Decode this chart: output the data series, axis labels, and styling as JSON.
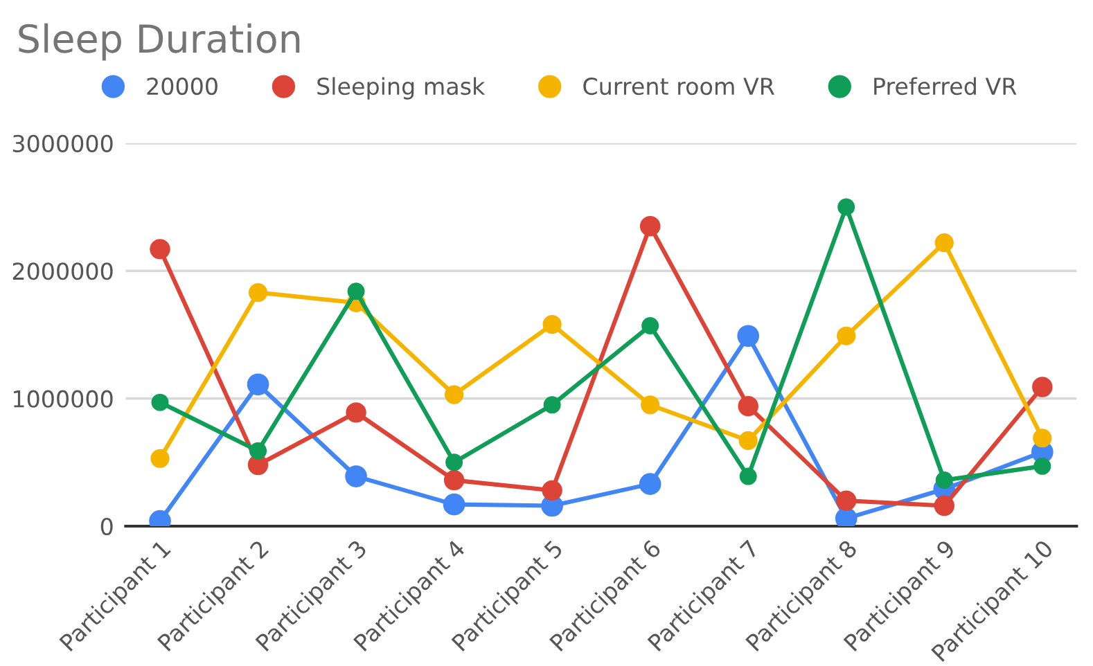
{
  "chart_data": {
    "type": "line",
    "title": "Sleep Duration",
    "categories": [
      "Participant 1",
      "Participant 2",
      "Participant 3",
      "Participant 4",
      "Participant 5",
      "Participant 6",
      "Participant 7",
      "Participant 8",
      "Participant 9",
      "Participant 10"
    ],
    "series": [
      {
        "name": "20000",
        "color": "#4285f4",
        "values": [
          40000,
          1110000,
          390000,
          170000,
          160000,
          330000,
          1490000,
          60000,
          290000,
          580000
        ]
      },
      {
        "name": "Sleeping mask",
        "color": "#db4437",
        "values": [
          2170000,
          480000,
          890000,
          360000,
          280000,
          2350000,
          940000,
          200000,
          160000,
          1090000
        ]
      },
      {
        "name": "Current room VR",
        "color": "#f4b400",
        "values": [
          530000,
          1830000,
          1750000,
          1030000,
          1580000,
          950000,
          670000,
          1490000,
          2220000,
          690000
        ]
      },
      {
        "name": "Preferred VR",
        "color": "#0f9d58",
        "values": [
          970000,
          590000,
          1840000,
          500000,
          950000,
          1570000,
          390000,
          2500000,
          360000,
          470000
        ]
      }
    ],
    "ylim": [
      0,
      3000000
    ],
    "yticks": [
      0,
      1000000,
      2000000,
      3000000
    ],
    "grid": "y",
    "legend": "top",
    "marker": "circle",
    "line_style": "solid"
  }
}
